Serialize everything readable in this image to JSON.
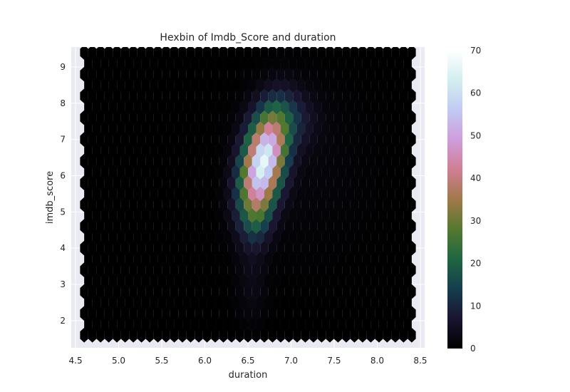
{
  "chart_data": {
    "type": "hexbin",
    "title": "Hexbin of Imdb_Score and duration",
    "xlabel": "duration",
    "ylabel": "imdb_score",
    "xlim": [
      4.45,
      8.55
    ],
    "ylim": [
      1.25,
      9.55
    ],
    "xticks": [
      "4.5",
      "5.0",
      "5.5",
      "6.0",
      "6.5",
      "7.0",
      "7.5",
      "8.0",
      "8.5"
    ],
    "yticks": [
      "2",
      "3",
      "4",
      "5",
      "6",
      "7",
      "8",
      "9"
    ],
    "grid": true,
    "colormap": "cubehelix",
    "colorbar": {
      "min": 0,
      "max": 70,
      "ticks": [
        "0",
        "10",
        "20",
        "30",
        "40",
        "50",
        "60",
        "70"
      ]
    },
    "hexbin_extent": {
      "x": [
        4.6,
        8.4
      ],
      "y": [
        1.6,
        9.4
      ]
    },
    "density_peak": {
      "x": 6.65,
      "y": 6.4,
      "max_count": 70
    }
  }
}
